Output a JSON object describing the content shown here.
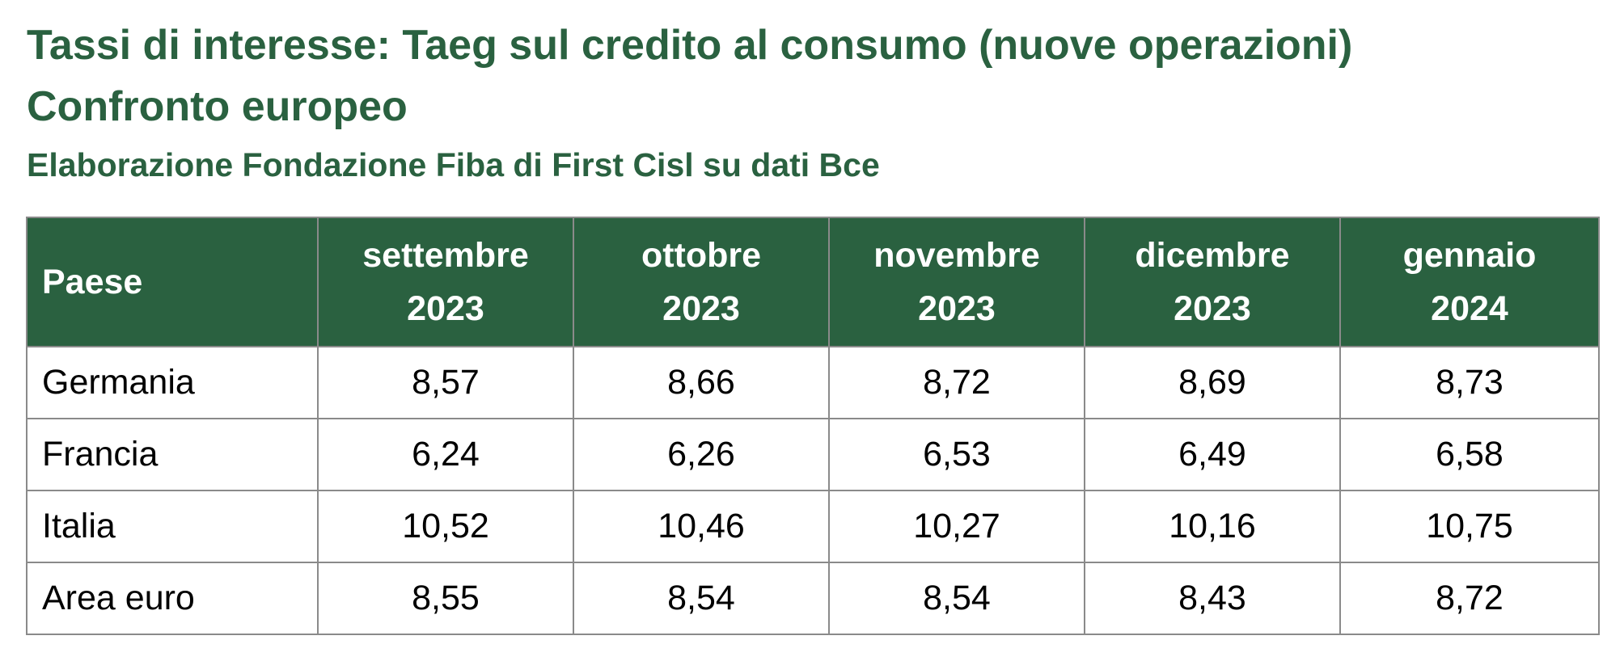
{
  "title_lines": [
    "Tassi di interesse: Taeg sul credito al consumo (nuove operazioni)",
    "Confronto europeo"
  ],
  "subtitle": "Elaborazione Fondazione Fiba di First Cisl su dati Bce",
  "table": {
    "country_header": "Paese",
    "columns": [
      {
        "month": "settembre",
        "year": "2023"
      },
      {
        "month": "ottobre",
        "year": "2023"
      },
      {
        "month": "novembre",
        "year": "2023"
      },
      {
        "month": "dicembre",
        "year": "2023"
      },
      {
        "month": "gennaio",
        "year": "2024"
      }
    ],
    "rows": [
      {
        "country": "Germania",
        "values": [
          "8,57",
          "8,66",
          "8,72",
          "8,69",
          "8,73"
        ]
      },
      {
        "country": "Francia",
        "values": [
          "6,24",
          "6,26",
          "6,53",
          "6,49",
          "6,58"
        ]
      },
      {
        "country": "Italia",
        "values": [
          "10,52",
          "10,46",
          "10,27",
          "10,16",
          "10,75"
        ]
      },
      {
        "country": "Area euro",
        "values": [
          "8,55",
          "8,54",
          "8,54",
          "8,43",
          "8,72"
        ]
      }
    ]
  },
  "colors": {
    "brand_green": "#2a6140",
    "header_text": "#ffffff",
    "grid": "#8a8a8a"
  }
}
